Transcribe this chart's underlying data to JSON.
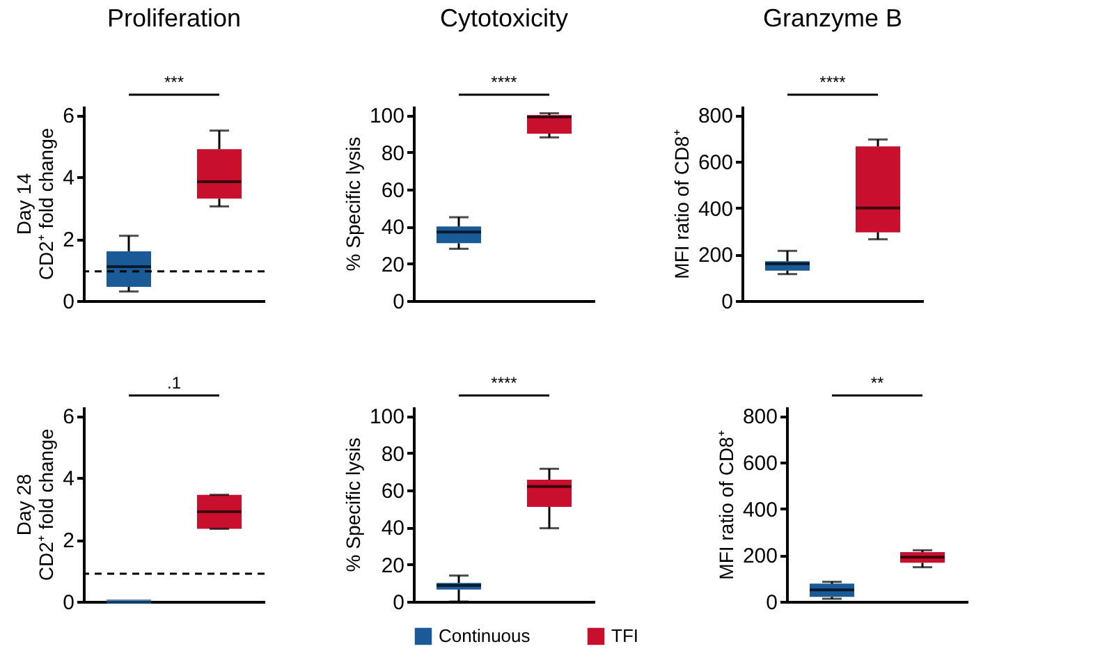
{
  "chart_data": [
    {
      "type": "box",
      "title": "Proliferation",
      "ylabel": "Day 14\nCD2⁺ fold change",
      "categories": [
        null
      ],
      "ylim": [
        0,
        6.3
      ],
      "yticks": [
        0,
        2,
        4,
        6
      ],
      "tick_labels": "y",
      "annotations": [
        "***"
      ],
      "ref_lines": [
        {
          "axis": "y",
          "value": 0.95,
          "color": "#000000",
          "line_style": "dashed"
        }
      ],
      "series": [
        {
          "color": "#1a5a96",
          "boxes": [
            {
              "low": 0.3,
              "q1": 0.45,
              "median": 1.1,
              "q3": 1.6,
              "high": 2.1
            }
          ]
        },
        {
          "color": "#c8102e",
          "boxes": [
            {
              "low": 3.05,
              "q1": 3.3,
              "median": 3.85,
              "q3": 4.9,
              "high": 5.5
            }
          ]
        }
      ]
    },
    {
      "type": "box",
      "title": "Cytotoxicity",
      "ylabel": "% Specific lysis",
      "categories": [
        null
      ],
      "ylim": [
        0,
        105
      ],
      "yticks": [
        0,
        20,
        40,
        60,
        80,
        100
      ],
      "tick_labels": "y",
      "annotations": [
        "****"
      ],
      "series": [
        {
          "color": "#1a5a96",
          "boxes": [
            {
              "low": 28,
              "q1": 31,
              "median": 37,
              "q3": 40,
              "high": 45
            }
          ]
        },
        {
          "color": "#c8102e",
          "boxes": [
            {
              "low": 88,
              "q1": 90,
              "median": 99,
              "q3": 100,
              "high": 101
            }
          ]
        }
      ]
    },
    {
      "type": "box",
      "title": "Granzyme B",
      "ylabel": "MFI ratio of CD8⁺",
      "categories": [
        null
      ],
      "ylim": [
        0,
        840
      ],
      "yticks": [
        0,
        200,
        400,
        600,
        800
      ],
      "tick_labels": "y",
      "annotations": [
        "****"
      ],
      "series": [
        {
          "color": "#1a5a96",
          "boxes": [
            {
              "low": 115,
              "q1": 130,
              "median": 160,
              "q3": 170,
              "high": 215
            }
          ]
        },
        {
          "color": "#c8102e",
          "boxes": [
            {
              "low": 265,
              "q1": 295,
              "median": 400,
              "q3": 665,
              "high": 695
            }
          ]
        }
      ]
    },
    {
      "type": "box",
      "ylabel": "Day 28\nCD2⁺ fold change",
      "categories": [
        null
      ],
      "ylim": [
        0,
        6.3
      ],
      "yticks": [
        0,
        2,
        4,
        6
      ],
      "tick_labels": "y",
      "annotations": [
        ".1"
      ],
      "ref_lines": [
        {
          "axis": "y",
          "value": 0.9,
          "color": "#000000",
          "line_style": "dashed"
        }
      ],
      "series": [
        {
          "color": "#1a5a96",
          "boxes": [
            {
              "low": 0,
              "q1": 0,
              "median": 0,
              "q3": 0,
              "high": 0
            }
          ]
        },
        {
          "color": "#c8102e",
          "boxes": [
            {
              "low": 2.35,
              "q1": 2.35,
              "median": 2.9,
              "q3": 3.45,
              "high": 3.45
            }
          ]
        }
      ]
    },
    {
      "type": "box",
      "ylabel": "% Specific lysis",
      "categories": [
        null
      ],
      "ylim": [
        0,
        105
      ],
      "yticks": [
        0,
        20,
        40,
        60,
        80,
        100
      ],
      "tick_labels": "y",
      "annotations": [
        "****"
      ],
      "legend": "bottom",
      "series": [
        {
          "name": "Continuous",
          "color": "#1a5a96",
          "boxes": [
            {
              "low": 0,
              "q1": 6.5,
              "median": 8.7,
              "q3": 10,
              "high": 14
            }
          ]
        },
        {
          "name": "TFI",
          "color": "#c8102e",
          "boxes": [
            {
              "low": 39.5,
              "q1": 51,
              "median": 62,
              "q3": 65.6,
              "high": 71.5
            }
          ]
        }
      ]
    },
    {
      "type": "box",
      "ylabel": "MFI ratio of CD8⁺",
      "categories": [
        null
      ],
      "ylim": [
        0,
        840
      ],
      "yticks": [
        0,
        200,
        400,
        600,
        800
      ],
      "tick_labels": "y",
      "annotations": [
        "**"
      ],
      "series": [
        {
          "color": "#1a5a96",
          "boxes": [
            {
              "low": 12,
              "q1": 20,
              "median": 50,
              "q3": 77,
              "high": 85
            }
          ]
        },
        {
          "color": "#c8102e",
          "boxes": [
            {
              "low": 148,
              "q1": 167,
              "median": 191,
              "q3": 213,
              "high": 221
            }
          ]
        }
      ]
    }
  ]
}
